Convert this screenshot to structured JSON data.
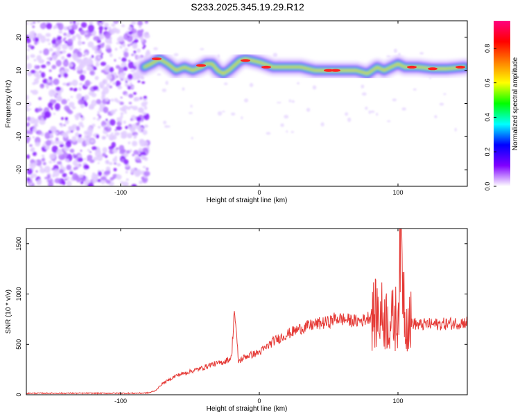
{
  "title": "S233.2025.345.19.29.R12",
  "chart_data": [
    {
      "type": "heatmap",
      "xlabel": "Height of straight line (km)",
      "ylabel": "Frequency (Hz)",
      "xlim": [
        -168,
        150
      ],
      "ylim": [
        -25,
        25
      ],
      "xticks": [
        -100,
        0,
        100
      ],
      "yticks": [
        -20,
        -10,
        0,
        10,
        20
      ],
      "xtick_labels": [
        "-100",
        "0",
        "100"
      ],
      "ytick_labels": [
        "-20",
        "-10",
        "0",
        "10",
        "20"
      ],
      "ridge": {
        "x": [
          -83,
          -78,
          -72,
          -66,
          -60,
          -54,
          -48,
          -42,
          -38,
          -34,
          -30,
          -26,
          -22,
          -18,
          -14,
          -10,
          -5,
          0,
          10,
          20,
          30,
          40,
          50,
          60,
          70,
          78,
          85,
          90,
          95,
          100,
          105,
          115,
          125,
          135,
          148
        ],
        "y": [
          11,
          12,
          13.5,
          12,
          10,
          11,
          10,
          11,
          12,
          12,
          10,
          9,
          10,
          11.5,
          13,
          13.5,
          13,
          12.5,
          11,
          11,
          11,
          10,
          10,
          10,
          10,
          9,
          11,
          10,
          11,
          12,
          11,
          11,
          10.5,
          10.5,
          11
        ]
      },
      "noise_region_x": [
        -168,
        -80
      ],
      "colorbar": {
        "label": "Normalized spectral amplitude",
        "ticks": [
          0.0,
          0.2,
          0.4,
          0.6,
          0.8
        ],
        "tick_labels": [
          "0.0",
          "0.2",
          "0.4",
          "0.6",
          "0.8"
        ],
        "range": [
          0,
          0.96
        ]
      },
      "colors": [
        "#ffffff",
        "#8000ff",
        "#0000ff",
        "#00ffff",
        "#00ff00",
        "#ffff00",
        "#ff8000",
        "#ff0000",
        "#ff0080"
      ]
    },
    {
      "type": "line",
      "xlabel": "Height of straight line (km)",
      "ylabel": "SNR (10 * v/v)",
      "xlim": [
        -168,
        150
      ],
      "ylim": [
        0,
        1650
      ],
      "xticks": [
        -100,
        0,
        100
      ],
      "yticks": [
        0,
        500,
        1000,
        1500
      ],
      "xtick_labels": [
        "-100",
        "0",
        "100"
      ],
      "ytick_labels": [
        "0",
        "500",
        "1000",
        "1500"
      ],
      "color": "#e53935",
      "x": [
        -168,
        -140,
        -110,
        -90,
        -80,
        -75,
        -70,
        -65,
        -60,
        -55,
        -50,
        -45,
        -40,
        -35,
        -30,
        -25,
        -20,
        -18,
        -15,
        -10,
        -5,
        0,
        5,
        10,
        20,
        30,
        40,
        50,
        55,
        60,
        65,
        70,
        75,
        80,
        85,
        90,
        95,
        100,
        102,
        105,
        110,
        115,
        120,
        130,
        140,
        150
      ],
      "y": [
        15,
        15,
        15,
        15,
        18,
        40,
        110,
        150,
        190,
        210,
        230,
        250,
        270,
        300,
        310,
        330,
        370,
        850,
        330,
        380,
        400,
        420,
        470,
        530,
        600,
        660,
        700,
        720,
        760,
        750,
        740,
        730,
        740,
        780,
        800,
        780,
        720,
        780,
        1650,
        780,
        720,
        690,
        700,
        700,
        710,
        720
      ]
    }
  ]
}
